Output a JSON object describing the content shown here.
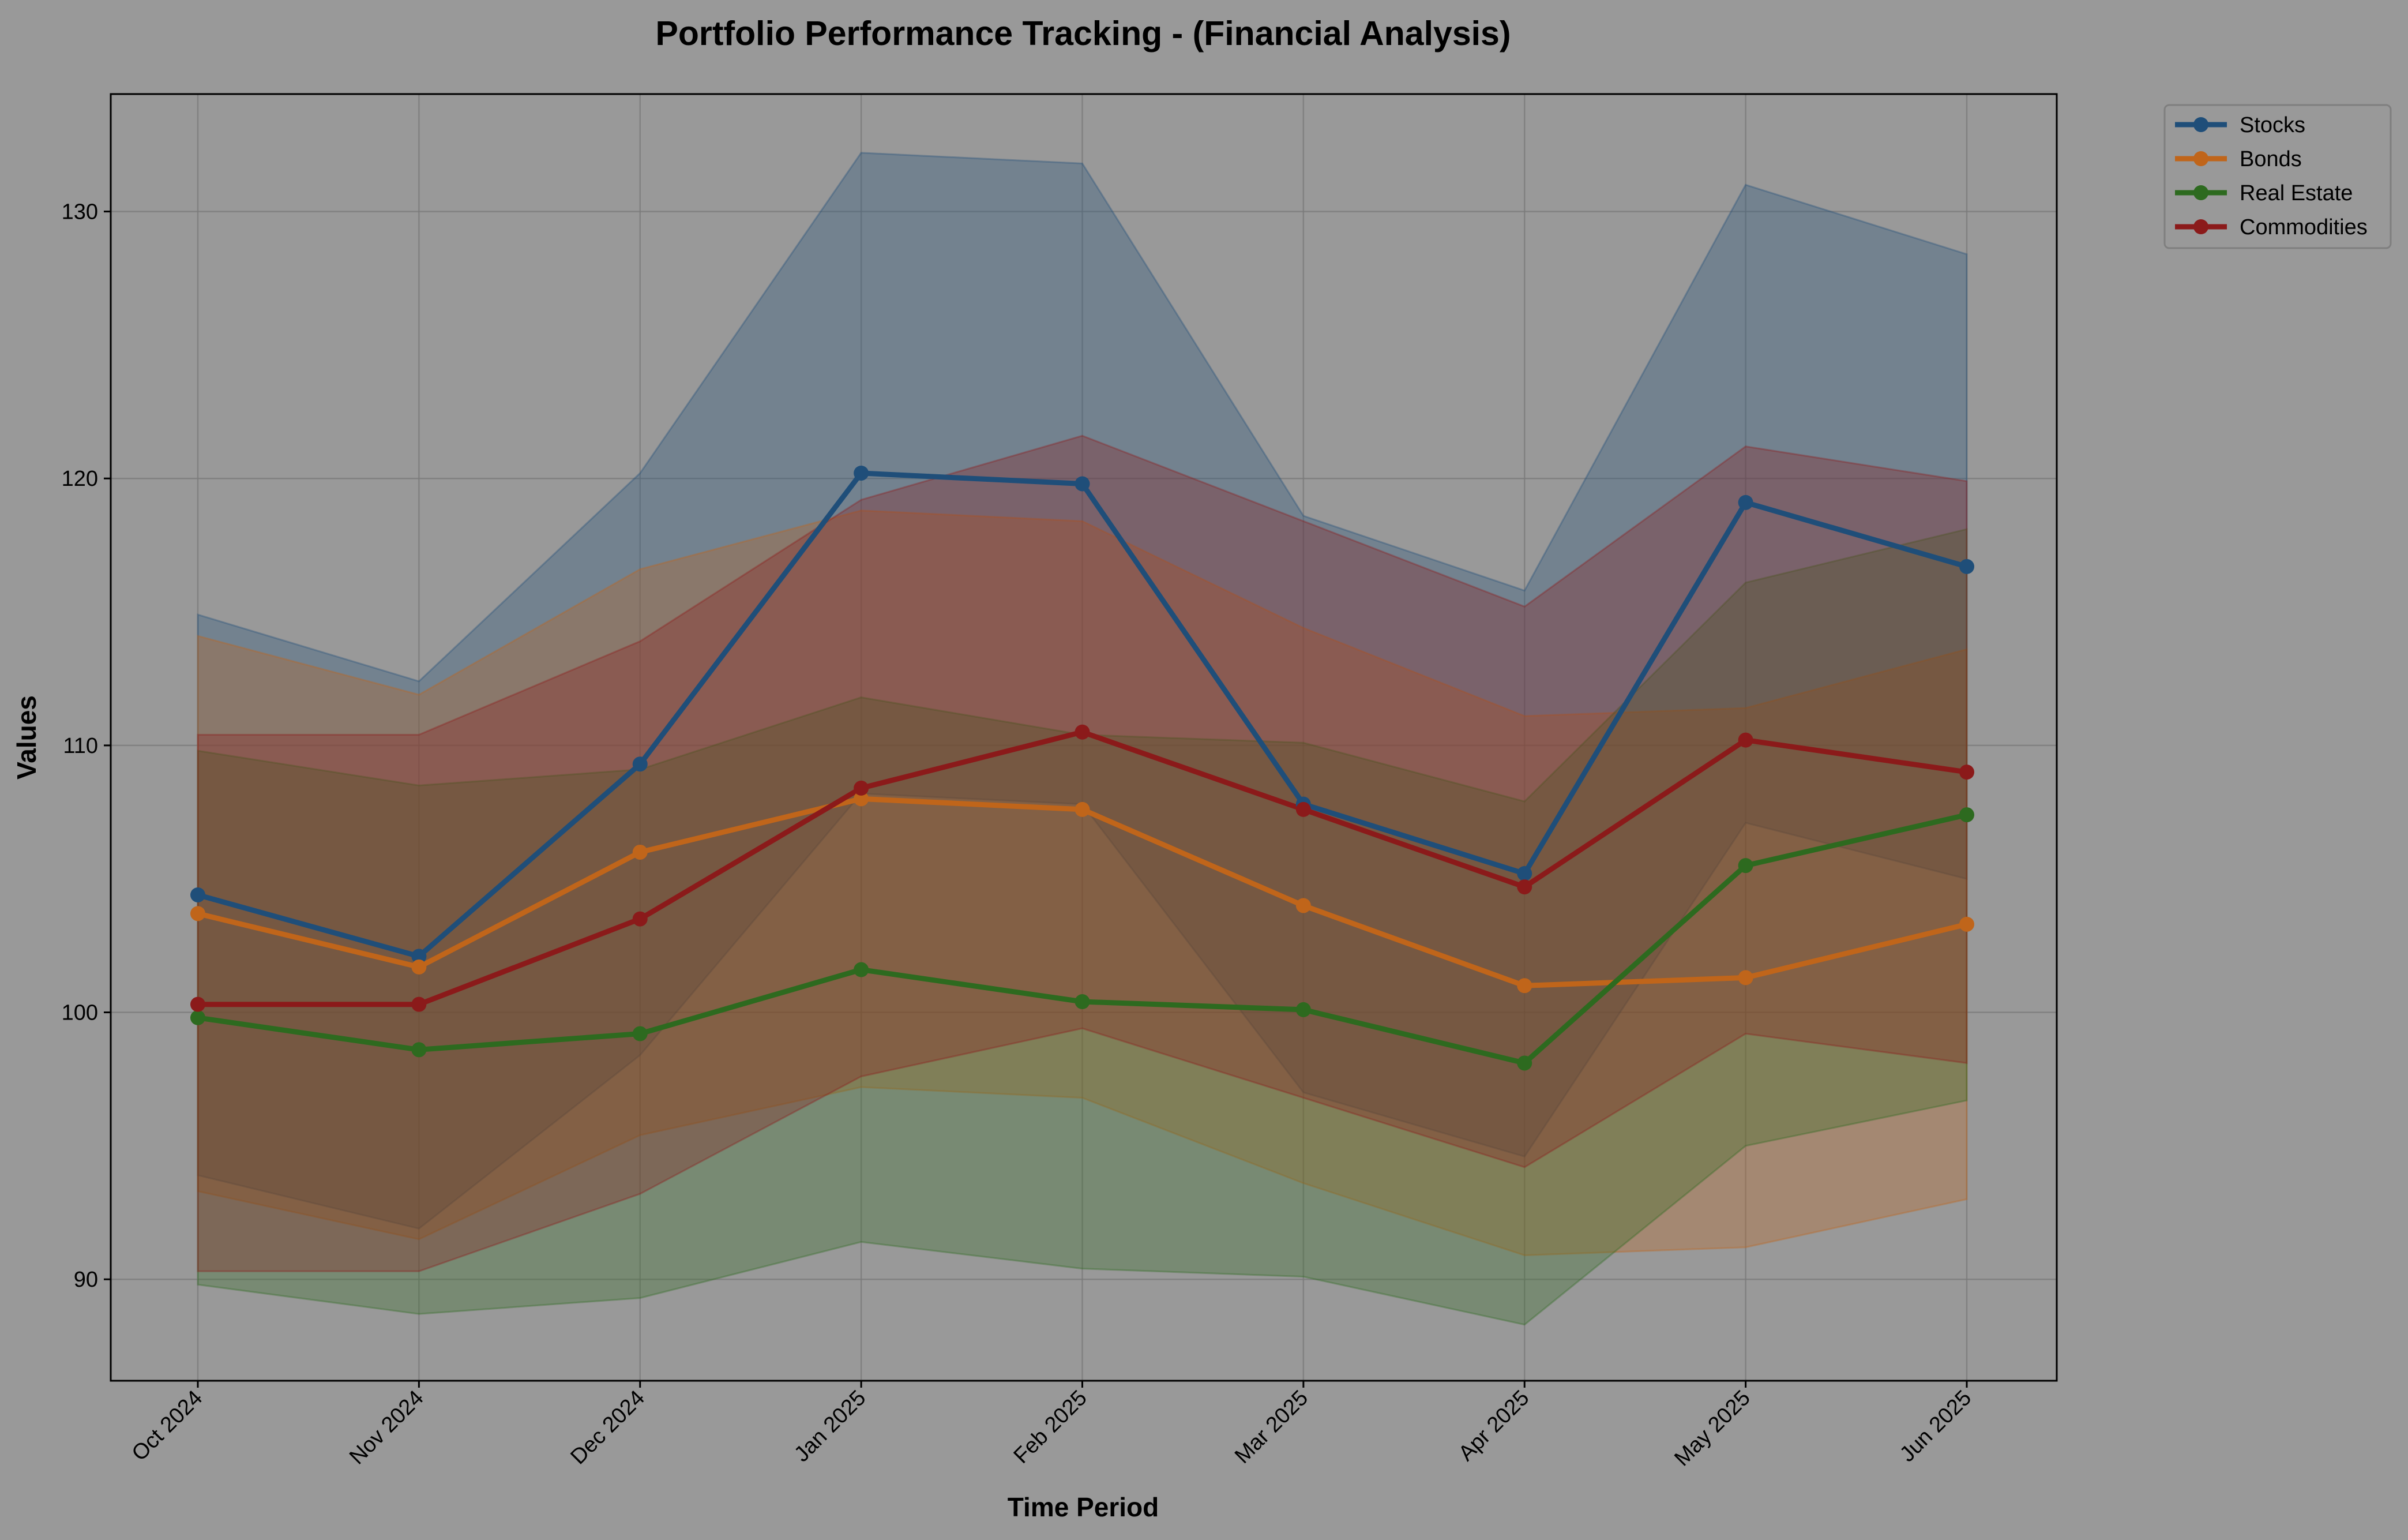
{
  "chart_data": {
    "type": "line",
    "title": "Portfolio Performance Tracking - (Financial Analysis)",
    "xlabel": "Time Period",
    "ylabel": "Values",
    "categories": [
      "Oct 2024",
      "Nov 2024",
      "Dec 2024",
      "Jan 2025",
      "Feb 2025",
      "Mar 2025",
      "Apr 2025",
      "May 2025",
      "Jun 2025"
    ],
    "ylim": [
      86.2,
      134.4
    ],
    "yticks": [
      90,
      100,
      110,
      120,
      130
    ],
    "grid": true,
    "legend_position": "upper right, outside plot",
    "series": [
      {
        "name": "Stocks",
        "color": "#1f4e79",
        "values": [
          104.4,
          102.1,
          109.3,
          120.2,
          119.8,
          107.8,
          105.2,
          119.1,
          116.7
        ],
        "upper": [
          114.9,
          112.4,
          120.2,
          132.2,
          131.8,
          118.6,
          115.8,
          131.0,
          128.4
        ],
        "lower": [
          93.9,
          91.9,
          98.4,
          108.2,
          107.8,
          97.0,
          94.6,
          107.1,
          105.0
        ]
      },
      {
        "name": "Bonds",
        "color": "#c0651a",
        "values": [
          103.7,
          101.7,
          106.0,
          108.0,
          107.6,
          104.0,
          101.0,
          101.3,
          103.3
        ],
        "upper": [
          114.1,
          111.9,
          116.6,
          118.8,
          118.4,
          114.4,
          111.1,
          111.4,
          113.6
        ],
        "lower": [
          93.3,
          91.5,
          95.4,
          97.2,
          96.8,
          93.6,
          90.9,
          91.2,
          93.0
        ]
      },
      {
        "name": "Real Estate",
        "color": "#2d6a1f",
        "values": [
          99.8,
          98.6,
          99.2,
          101.6,
          100.4,
          100.1,
          98.1,
          105.5,
          107.4
        ],
        "upper": [
          109.8,
          108.5,
          109.1,
          111.8,
          110.4,
          110.1,
          107.9,
          116.1,
          118.1
        ],
        "lower": [
          89.8,
          88.7,
          89.3,
          91.4,
          90.4,
          90.1,
          88.3,
          95.0,
          96.7
        ]
      },
      {
        "name": "Commodities",
        "color": "#8b1a1a",
        "values": [
          100.3,
          100.3,
          103.5,
          108.4,
          110.5,
          107.6,
          104.7,
          110.2,
          109.0
        ],
        "upper": [
          110.4,
          110.4,
          113.9,
          119.2,
          121.6,
          118.4,
          115.2,
          121.2,
          119.9
        ],
        "lower": [
          90.3,
          90.3,
          93.2,
          97.6,
          99.4,
          96.8,
          94.2,
          99.2,
          98.1
        ]
      }
    ]
  }
}
